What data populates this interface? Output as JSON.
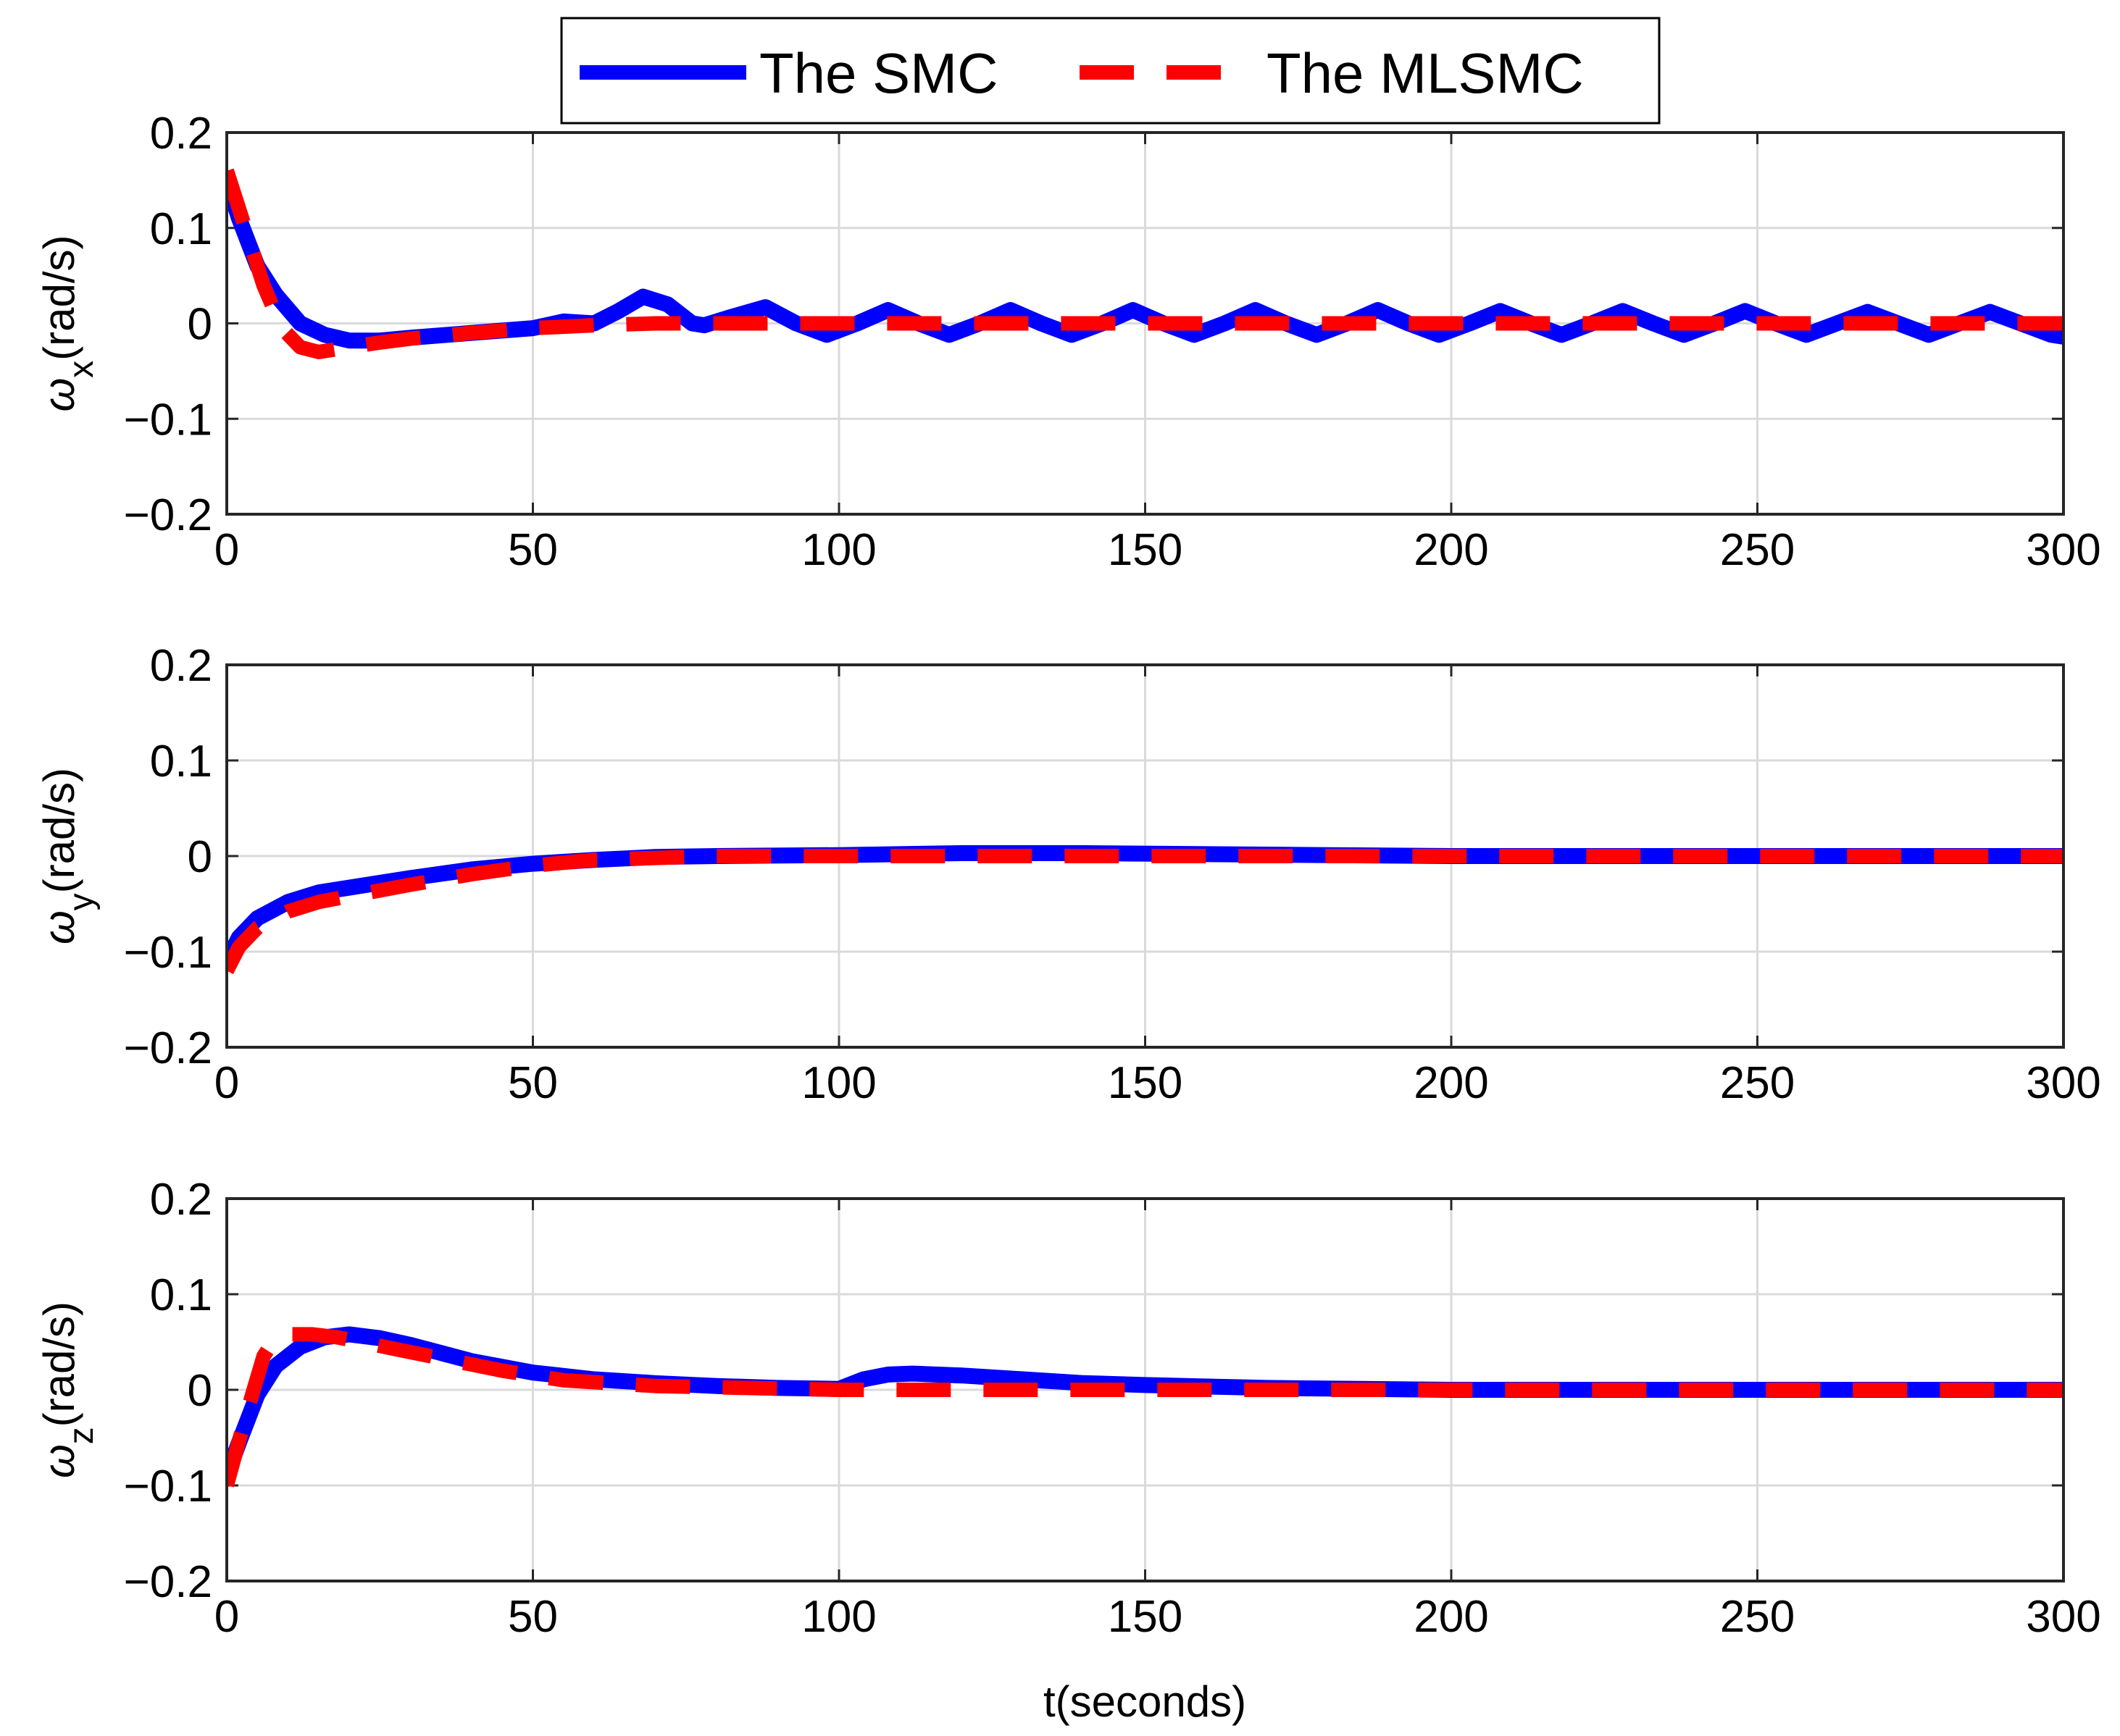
{
  "chart_data": {
    "type": "line",
    "legend": {
      "position": "top-center",
      "entries": [
        {
          "name": "The SMC",
          "color": "#0000ff",
          "style": "solid"
        },
        {
          "name": "The MLSMC",
          "color": "#ff0000",
          "style": "dashed"
        }
      ]
    },
    "xlabel": "t(seconds)",
    "xlim": [
      0,
      300
    ],
    "x_ticks": [
      "0",
      "50",
      "100",
      "150",
      "200",
      "250",
      "300"
    ],
    "y_ticks": [
      "−0.2",
      "−0.1",
      "0",
      "0.1",
      "0.2"
    ],
    "grid": true,
    "subplots": [
      {
        "ylabel_symbol": "ω",
        "ylabel_subscript": "x",
        "ylabel_unit": "(rad/s)",
        "ylim": [
          -0.2,
          0.2
        ],
        "series": [
          {
            "name": "The SMC",
            "color": "#0000ff",
            "x": [
              0,
              2,
              5,
              8,
              12,
              16,
              20,
              25,
              30,
              40,
              50,
              55,
              60,
              64,
              68,
              72,
              76,
              78,
              82,
              88,
              93,
              98,
              103,
              108,
              113,
              118,
              123,
              128,
              133,
              138,
              143,
              148,
              153,
              158,
              163,
              168,
              173,
              178,
              183,
              188,
              193,
              198,
              203,
              208,
              213,
              218,
              223,
              228,
              233,
              238,
              243,
              248,
              253,
              258,
              263,
              268,
              273,
              278,
              283,
              288,
              293,
              298,
              300
            ],
            "values": [
              0.15,
              0.11,
              0.06,
              0.03,
              0.0,
              -0.012,
              -0.018,
              -0.018,
              -0.015,
              -0.01,
              -0.005,
              0.002,
              0.0,
              0.013,
              0.028,
              0.02,
              0.0,
              -0.002,
              0.006,
              0.017,
              0.0,
              -0.012,
              0.0,
              0.014,
              0.0,
              -0.012,
              0.0,
              0.014,
              0.0,
              -0.012,
              0.0,
              0.014,
              0.0,
              -0.012,
              0.0,
              0.014,
              0.0,
              -0.012,
              0.0,
              0.014,
              0.0,
              -0.012,
              0.0,
              0.013,
              0.0,
              -0.012,
              0.0,
              0.013,
              0.0,
              -0.012,
              0.0,
              0.013,
              0.0,
              -0.012,
              0.0,
              0.012,
              0.0,
              -0.012,
              0.0,
              0.012,
              0.0,
              -0.012,
              -0.014
            ]
          },
          {
            "name": "The MLSMC",
            "color": "#ff0000",
            "x": [
              0,
              3,
              6,
              9,
              12,
              15,
              20,
              25,
              30,
              40,
              50,
              60,
              70,
              80,
              100,
              150,
              200,
              250,
              300
            ],
            "values": [
              0.16,
              0.1,
              0.04,
              -0.005,
              -0.025,
              -0.03,
              -0.025,
              -0.02,
              -0.016,
              -0.01,
              -0.005,
              -0.002,
              0.0,
              0.0,
              0.0,
              0.0,
              0.0,
              0.0,
              0.0
            ]
          }
        ]
      },
      {
        "ylabel_symbol": "ω",
        "ylabel_subscript": "y",
        "ylabel_unit": "(rad/s)",
        "ylim": [
          -0.2,
          0.2
        ],
        "series": [
          {
            "name": "The SMC",
            "color": "#0000ff",
            "x": [
              0,
              2,
              5,
              10,
              15,
              20,
              30,
              40,
              50,
              60,
              70,
              80,
              100,
              120,
              140,
              160,
              180,
              200,
              250,
              300
            ],
            "values": [
              -0.11,
              -0.085,
              -0.065,
              -0.048,
              -0.038,
              -0.033,
              -0.023,
              -0.014,
              -0.008,
              -0.004,
              -0.001,
              0.0,
              0.001,
              0.003,
              0.003,
              0.002,
              0.001,
              0.0,
              0.0,
              0.0
            ]
          },
          {
            "name": "The MLSMC",
            "color": "#ff0000",
            "x": [
              0,
              2,
              5,
              10,
              15,
              20,
              30,
              40,
              50,
              60,
              70,
              80,
              100,
              150,
              200,
              250,
              300
            ],
            "values": [
              -0.12,
              -0.095,
              -0.075,
              -0.058,
              -0.048,
              -0.042,
              -0.03,
              -0.019,
              -0.01,
              -0.004,
              -0.002,
              0.0,
              0.0,
              0.0,
              0.0,
              0.0,
              0.0
            ]
          }
        ]
      },
      {
        "ylabel_symbol": "ω",
        "ylabel_subscript": "z",
        "ylabel_unit": "(rad/s)",
        "ylim": [
          -0.2,
          0.2
        ],
        "series": [
          {
            "name": "The SMC",
            "color": "#0000ff",
            "x": [
              0,
              2,
              5,
              8,
              12,
              16,
              20,
              25,
              30,
              40,
              50,
              60,
              70,
              80,
              90,
              100,
              104,
              108,
              112,
              120,
              130,
              140,
              150,
              170,
              200,
              250,
              300
            ],
            "values": [
              -0.09,
              -0.055,
              -0.005,
              0.025,
              0.045,
              0.055,
              0.058,
              0.054,
              0.047,
              0.03,
              0.018,
              0.011,
              0.007,
              0.004,
              0.002,
              0.001,
              0.011,
              0.016,
              0.017,
              0.015,
              0.011,
              0.007,
              0.005,
              0.002,
              0.0,
              0.0,
              0.0
            ]
          },
          {
            "name": "The MLSMC",
            "color": "#ff0000",
            "x": [
              0,
              3,
              6,
              8,
              10,
              14,
              18,
              22,
              28,
              35,
              45,
              55,
              70,
              85,
              100,
              150,
              200,
              250,
              300
            ],
            "values": [
              -0.1,
              -0.03,
              0.035,
              0.055,
              0.058,
              0.058,
              0.055,
              0.05,
              0.042,
              0.033,
              0.02,
              0.01,
              0.004,
              0.002,
              0.0,
              0.0,
              0.0,
              0.0,
              0.0
            ]
          }
        ]
      }
    ]
  }
}
